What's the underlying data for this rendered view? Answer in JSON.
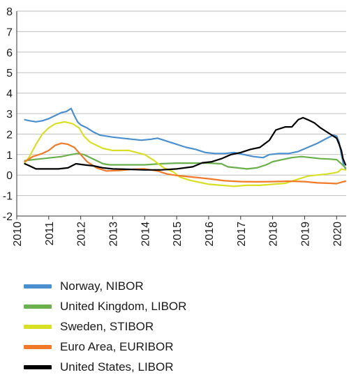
{
  "chart_data": {
    "type": "line",
    "title": "",
    "xlabel": "",
    "ylabel": "",
    "xlim": [
      2010,
      2020.3
    ],
    "ylim": [
      -2,
      8
    ],
    "y_ticks": [
      -2,
      -1,
      0,
      1,
      2,
      3,
      4,
      5,
      6,
      7,
      8
    ],
    "x_ticks": [
      "2010",
      "2011",
      "2012",
      "2013",
      "2014",
      "2015",
      "2016",
      "2017",
      "2018",
      "2019",
      "2020"
    ],
    "grid": "horizontal",
    "legend_position": "bottom",
    "series": [
      {
        "name": "Norway, NIBOR",
        "color": "#4a90d0",
        "points": [
          [
            2010.25,
            2.7
          ],
          [
            2010.4,
            2.65
          ],
          [
            2010.6,
            2.6
          ],
          [
            2010.8,
            2.65
          ],
          [
            2011.0,
            2.75
          ],
          [
            2011.2,
            2.9
          ],
          [
            2011.4,
            3.05
          ],
          [
            2011.55,
            3.1
          ],
          [
            2011.7,
            3.25
          ],
          [
            2011.8,
            2.9
          ],
          [
            2011.9,
            2.6
          ],
          [
            2012.0,
            2.45
          ],
          [
            2012.2,
            2.3
          ],
          [
            2012.4,
            2.1
          ],
          [
            2012.6,
            1.95
          ],
          [
            2012.8,
            1.9
          ],
          [
            2013.0,
            1.85
          ],
          [
            2013.3,
            1.8
          ],
          [
            2013.6,
            1.75
          ],
          [
            2013.9,
            1.7
          ],
          [
            2014.2,
            1.75
          ],
          [
            2014.4,
            1.8
          ],
          [
            2014.6,
            1.7
          ],
          [
            2014.8,
            1.6
          ],
          [
            2015.0,
            1.5
          ],
          [
            2015.3,
            1.35
          ],
          [
            2015.6,
            1.25
          ],
          [
            2015.9,
            1.1
          ],
          [
            2016.2,
            1.05
          ],
          [
            2016.5,
            1.05
          ],
          [
            2016.8,
            1.1
          ],
          [
            2017.1,
            1.0
          ],
          [
            2017.4,
            0.9
          ],
          [
            2017.7,
            0.85
          ],
          [
            2017.9,
            1.0
          ],
          [
            2018.2,
            1.05
          ],
          [
            2018.5,
            1.05
          ],
          [
            2018.8,
            1.15
          ],
          [
            2019.1,
            1.35
          ],
          [
            2019.4,
            1.55
          ],
          [
            2019.7,
            1.8
          ],
          [
            2019.9,
            1.95
          ],
          [
            2020.0,
            1.9
          ],
          [
            2020.08,
            1.6
          ],
          [
            2020.15,
            1.0
          ],
          [
            2020.22,
            0.5
          ],
          [
            2020.28,
            0.3
          ]
        ]
      },
      {
        "name": "United Kingdom, LIBOR",
        "color": "#6ab04c",
        "points": [
          [
            2010.25,
            0.7
          ],
          [
            2010.5,
            0.75
          ],
          [
            2010.8,
            0.8
          ],
          [
            2011.1,
            0.85
          ],
          [
            2011.4,
            0.9
          ],
          [
            2011.7,
            1.0
          ],
          [
            2011.9,
            1.05
          ],
          [
            2012.1,
            1.0
          ],
          [
            2012.3,
            0.85
          ],
          [
            2012.5,
            0.7
          ],
          [
            2012.7,
            0.55
          ],
          [
            2012.9,
            0.5
          ],
          [
            2013.5,
            0.5
          ],
          [
            2014.0,
            0.5
          ],
          [
            2014.5,
            0.55
          ],
          [
            2015.0,
            0.58
          ],
          [
            2015.5,
            0.58
          ],
          [
            2016.0,
            0.58
          ],
          [
            2016.4,
            0.55
          ],
          [
            2016.6,
            0.4
          ],
          [
            2016.9,
            0.35
          ],
          [
            2017.2,
            0.3
          ],
          [
            2017.5,
            0.35
          ],
          [
            2017.8,
            0.5
          ],
          [
            2018.0,
            0.65
          ],
          [
            2018.3,
            0.75
          ],
          [
            2018.6,
            0.85
          ],
          [
            2018.9,
            0.9
          ],
          [
            2019.2,
            0.85
          ],
          [
            2019.5,
            0.8
          ],
          [
            2019.8,
            0.78
          ],
          [
            2020.0,
            0.75
          ],
          [
            2020.15,
            0.55
          ],
          [
            2020.28,
            0.35
          ]
        ]
      },
      {
        "name": "Sweden, STIBOR",
        "color": "#d7e023",
        "points": [
          [
            2010.25,
            0.6
          ],
          [
            2010.4,
            0.9
          ],
          [
            2010.6,
            1.5
          ],
          [
            2010.8,
            2.0
          ],
          [
            2011.0,
            2.3
          ],
          [
            2011.2,
            2.5
          ],
          [
            2011.5,
            2.6
          ],
          [
            2011.75,
            2.5
          ],
          [
            2011.95,
            2.3
          ],
          [
            2012.1,
            1.9
          ],
          [
            2012.3,
            1.6
          ],
          [
            2012.5,
            1.45
          ],
          [
            2012.7,
            1.3
          ],
          [
            2013.0,
            1.2
          ],
          [
            2013.5,
            1.2
          ],
          [
            2014.0,
            1.0
          ],
          [
            2014.3,
            0.7
          ],
          [
            2014.6,
            0.35
          ],
          [
            2014.9,
            0.15
          ],
          [
            2015.1,
            -0.1
          ],
          [
            2015.4,
            -0.25
          ],
          [
            2015.7,
            -0.35
          ],
          [
            2016.0,
            -0.45
          ],
          [
            2016.4,
            -0.5
          ],
          [
            2016.8,
            -0.55
          ],
          [
            2017.2,
            -0.5
          ],
          [
            2017.6,
            -0.5
          ],
          [
            2018.0,
            -0.45
          ],
          [
            2018.4,
            -0.4
          ],
          [
            2018.8,
            -0.2
          ],
          [
            2019.1,
            -0.05
          ],
          [
            2019.4,
            0.0
          ],
          [
            2019.7,
            0.05
          ],
          [
            2019.9,
            0.1
          ],
          [
            2020.05,
            0.15
          ],
          [
            2020.15,
            0.3
          ],
          [
            2020.28,
            0.25
          ]
        ]
      },
      {
        "name": "Euro Area, EURIBOR",
        "color": "#f07a28",
        "points": [
          [
            2010.25,
            0.65
          ],
          [
            2010.5,
            0.9
          ],
          [
            2010.8,
            1.05
          ],
          [
            2011.0,
            1.2
          ],
          [
            2011.2,
            1.45
          ],
          [
            2011.4,
            1.55
          ],
          [
            2011.6,
            1.5
          ],
          [
            2011.8,
            1.35
          ],
          [
            2012.0,
            1.0
          ],
          [
            2012.2,
            0.65
          ],
          [
            2012.5,
            0.35
          ],
          [
            2012.8,
            0.2
          ],
          [
            2013.2,
            0.22
          ],
          [
            2013.6,
            0.28
          ],
          [
            2014.0,
            0.3
          ],
          [
            2014.4,
            0.2
          ],
          [
            2014.7,
            0.05
          ],
          [
            2015.0,
            -0.02
          ],
          [
            2015.5,
            -0.1
          ],
          [
            2016.0,
            -0.18
          ],
          [
            2016.5,
            -0.28
          ],
          [
            2017.0,
            -0.32
          ],
          [
            2017.5,
            -0.33
          ],
          [
            2018.0,
            -0.32
          ],
          [
            2018.5,
            -0.3
          ],
          [
            2019.0,
            -0.32
          ],
          [
            2019.4,
            -0.38
          ],
          [
            2019.8,
            -0.4
          ],
          [
            2020.0,
            -0.42
          ],
          [
            2020.15,
            -0.35
          ],
          [
            2020.28,
            -0.3
          ]
        ]
      },
      {
        "name": "United States, LIBOR",
        "color": "#000000",
        "points": [
          [
            2010.25,
            0.55
          ],
          [
            2010.4,
            0.45
          ],
          [
            2010.6,
            0.3
          ],
          [
            2010.9,
            0.3
          ],
          [
            2011.3,
            0.3
          ],
          [
            2011.6,
            0.35
          ],
          [
            2011.85,
            0.55
          ],
          [
            2012.1,
            0.5
          ],
          [
            2012.4,
            0.45
          ],
          [
            2012.7,
            0.35
          ],
          [
            2013.0,
            0.3
          ],
          [
            2013.5,
            0.28
          ],
          [
            2014.0,
            0.25
          ],
          [
            2014.5,
            0.25
          ],
          [
            2015.0,
            0.3
          ],
          [
            2015.5,
            0.4
          ],
          [
            2015.8,
            0.6
          ],
          [
            2016.1,
            0.65
          ],
          [
            2016.4,
            0.8
          ],
          [
            2016.7,
            1.0
          ],
          [
            2017.0,
            1.1
          ],
          [
            2017.3,
            1.25
          ],
          [
            2017.6,
            1.35
          ],
          [
            2017.9,
            1.7
          ],
          [
            2018.1,
            2.2
          ],
          [
            2018.4,
            2.35
          ],
          [
            2018.6,
            2.35
          ],
          [
            2018.8,
            2.7
          ],
          [
            2018.95,
            2.8
          ],
          [
            2019.1,
            2.7
          ],
          [
            2019.3,
            2.55
          ],
          [
            2019.5,
            2.3
          ],
          [
            2019.7,
            2.1
          ],
          [
            2019.85,
            1.95
          ],
          [
            2020.0,
            1.8
          ],
          [
            2020.08,
            1.5
          ],
          [
            2020.15,
            1.2
          ],
          [
            2020.2,
            0.8
          ],
          [
            2020.28,
            0.5
          ]
        ]
      }
    ]
  }
}
